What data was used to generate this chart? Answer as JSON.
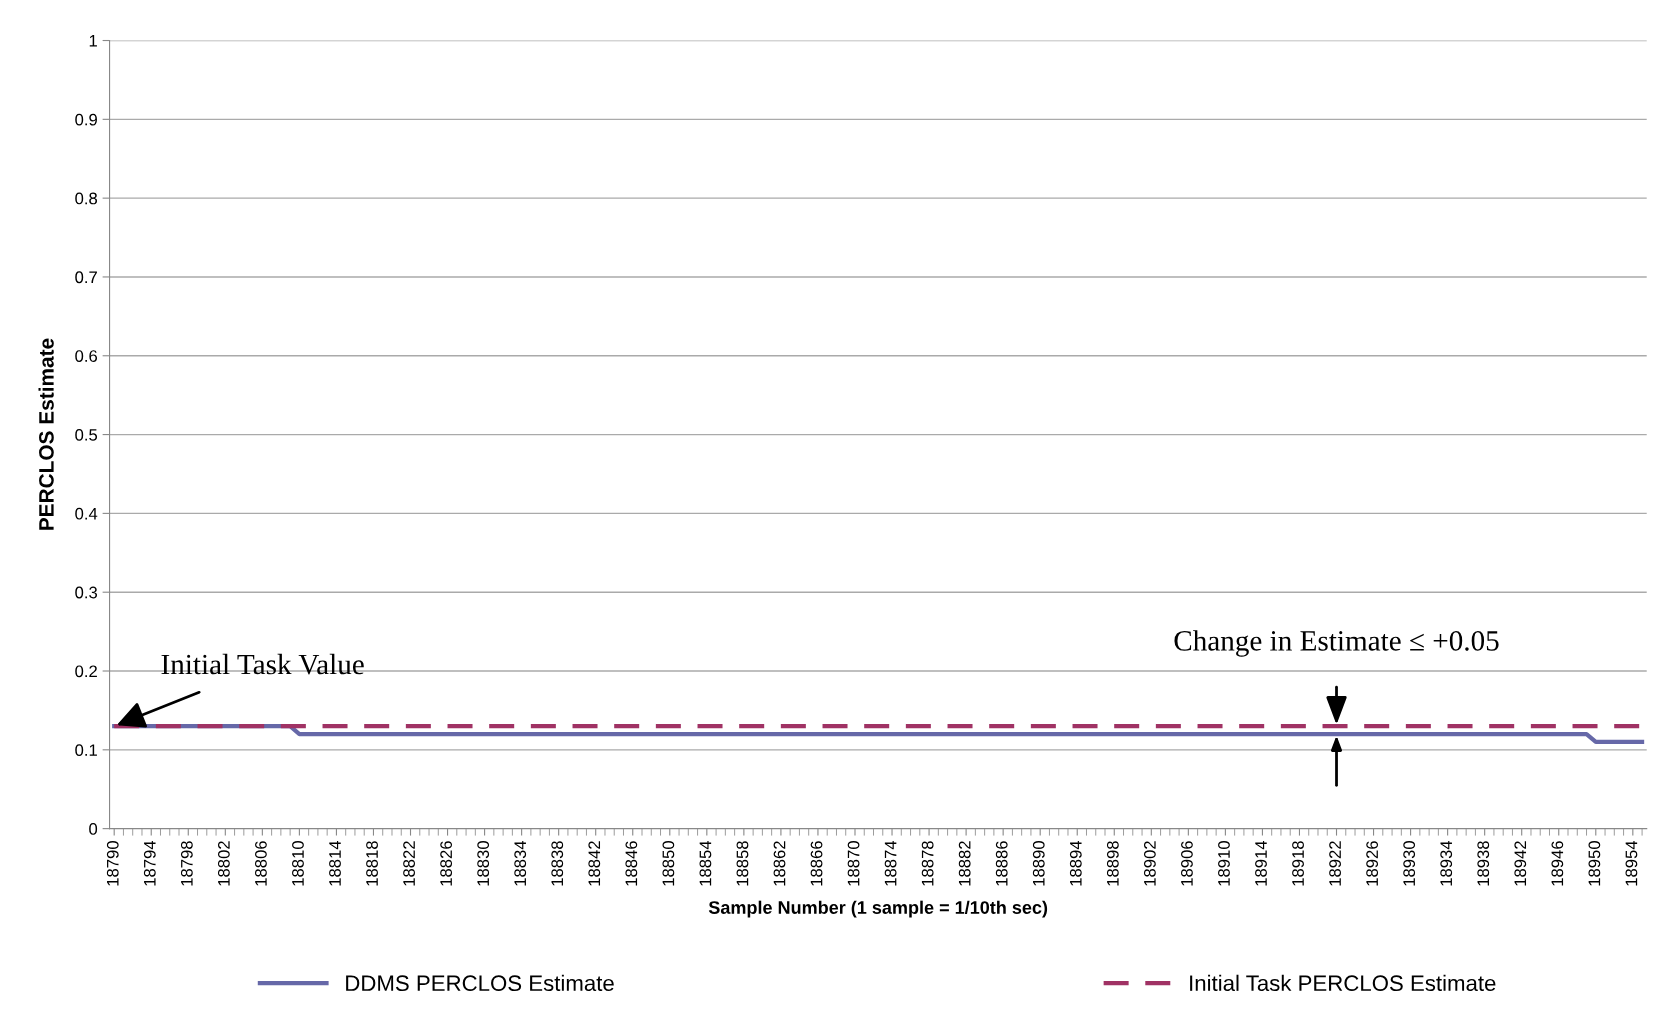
{
  "chart_data": {
    "type": "line",
    "xlabel": "Sample Number (1 sample = 1/10th sec)",
    "ylabel": "PERCLOS Estimate",
    "xlim": [
      18789.5,
      18955.5
    ],
    "ylim": [
      0,
      1
    ],
    "xticks": [
      18790,
      18794,
      18798,
      18802,
      18806,
      18810,
      18814,
      18818,
      18822,
      18826,
      18830,
      18834,
      18838,
      18842,
      18846,
      18850,
      18854,
      18858,
      18862,
      18866,
      18870,
      18874,
      18878,
      18882,
      18886,
      18890,
      18894,
      18898,
      18902,
      18906,
      18910,
      18914,
      18918,
      18922,
      18926,
      18930,
      18934,
      18938,
      18942,
      18946,
      18950,
      18954
    ],
    "yticks": [
      0,
      0.1,
      0.2,
      0.3,
      0.4,
      0.5,
      0.6,
      0.7,
      0.8,
      0.9,
      1
    ],
    "grid": "y",
    "legend": "bottom",
    "series": [
      {
        "name": "DDMS PERCLOS Estimate",
        "color": "#6668a8",
        "line_style": "solid",
        "x": [
          18790,
          18809,
          18810,
          18949,
          18950,
          18955
        ],
        "values": [
          0.13,
          0.13,
          0.12,
          0.12,
          0.11,
          0.11
        ]
      },
      {
        "name": "Initial Task PERCLOS Estimate",
        "color": "#a03264",
        "line_style": "dashed",
        "x": [
          18790,
          18955
        ],
        "values": [
          0.13,
          0.13
        ]
      }
    ],
    "annotations": [
      {
        "text": "Initial Task Value",
        "x": 18790,
        "y": 0.13
      },
      {
        "text": "Change in Estimate ≤ +0.05",
        "x": 18922,
        "y": 0.13
      }
    ]
  }
}
